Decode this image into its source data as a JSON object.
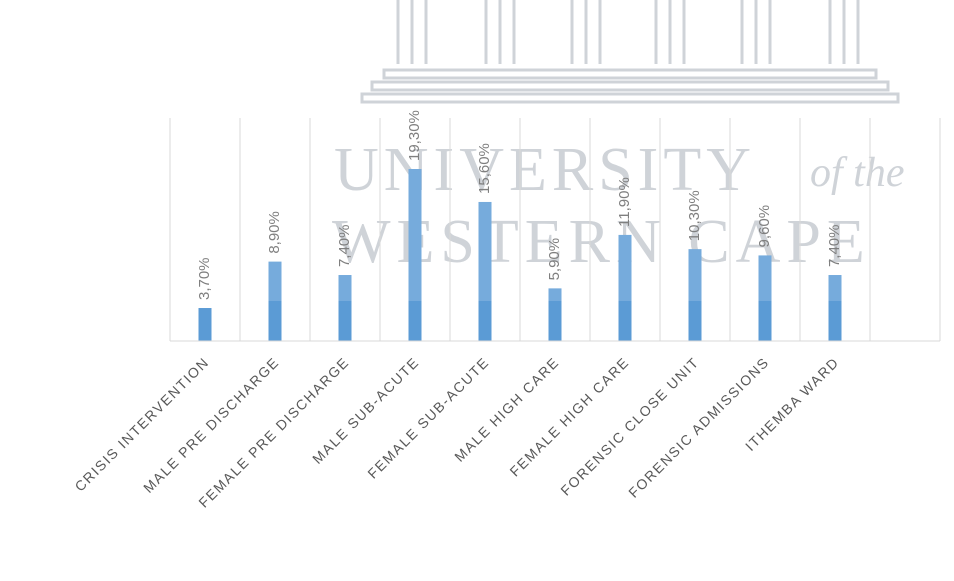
{
  "watermark": {
    "line1": "UNIVERSITY",
    "line1_tail": "of the",
    "line2": "WESTERN CAPE"
  },
  "colors": {
    "bar": "#5b9bd5",
    "bar_light": "#8db8e2",
    "grid": "#d9d9d9",
    "label": "#7f7f7f",
    "axis_text": "#595959",
    "watermark": "#cfd3d8"
  },
  "chart_data": {
    "type": "bar",
    "categories": [
      "CRISIS INTERVENTION",
      "MALE PRE DISCHARGE",
      "FEMALE PRE DISCHARGE",
      "MALE SUB-ACUTE",
      "FEMALE SUB-ACUTE",
      "MALE HIGH CARE",
      "FEMALE HIGH CARE",
      "FORENSIC CLOSE UNIT",
      "FORENSIC ADMISSIONS",
      "ITHEMBA WARD",
      ""
    ],
    "values": [
      3.7,
      8.9,
      7.4,
      19.3,
      15.6,
      5.9,
      11.9,
      10.3,
      9.6,
      7.4,
      null
    ],
    "data_labels": [
      "3,70%",
      "8,90%",
      "7,40%",
      "19,30%",
      "15,60%",
      "5,90%",
      "11,90%",
      "10,30%",
      "9,60%",
      "7,40%",
      ""
    ],
    "ylim": [
      0,
      25
    ],
    "grid": "vertical",
    "title": "",
    "xlabel": "",
    "ylabel": ""
  }
}
